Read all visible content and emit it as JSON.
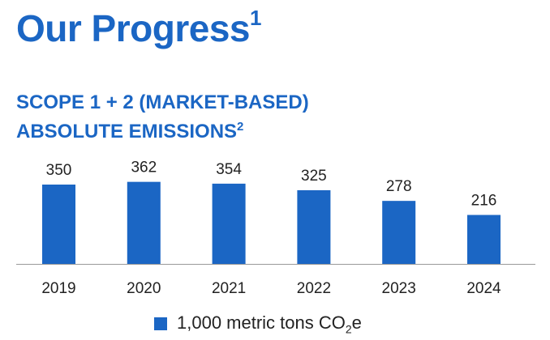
{
  "page": {
    "title": "Our Progress",
    "title_sup": "1",
    "subtitle_line1": "SCOPE 1 + 2 (MARKET-BASED)",
    "subtitle_line2": "ABSOLUTE EMISSIONS",
    "subtitle_sup": "2"
  },
  "legend": {
    "label_pre": "1,000 metric tons CO",
    "label_sub": "2",
    "label_post": "e"
  },
  "colors": {
    "accent": "#1b66c4",
    "bar": "#1b66c4",
    "axis": "#999999",
    "text": "#222222"
  },
  "chart_data": {
    "type": "bar",
    "categories": [
      "2019",
      "2020",
      "2021",
      "2022",
      "2023",
      "2024"
    ],
    "series": [
      {
        "name": "1,000 metric tons CO2e",
        "values": [
          350,
          362,
          354,
          325,
          278,
          216
        ]
      }
    ],
    "title": "SCOPE 1 + 2 (MARKET-BASED) ABSOLUTE EMISSIONS",
    "xlabel": "",
    "ylabel": "",
    "ylim": [
      0,
      400
    ],
    "grid": false,
    "legend": "bottom"
  }
}
